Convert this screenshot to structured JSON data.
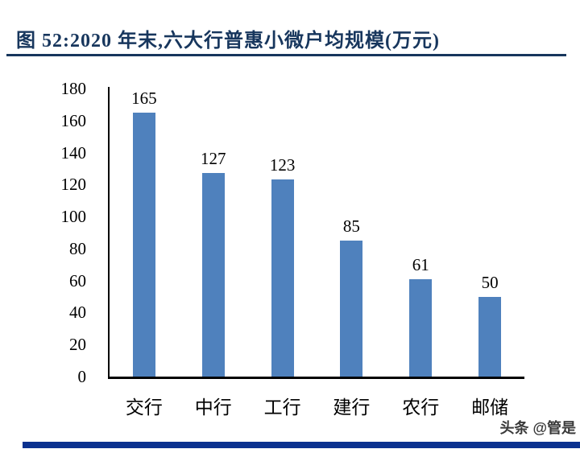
{
  "header": {
    "title": "图 52:2020 年末,六大行普惠小微户均规模(万元)"
  },
  "chart_data": {
    "type": "bar",
    "title": "图 52:2020 年末,六大行普惠小微户均规模(万元)",
    "categories": [
      "交行",
      "中行",
      "工行",
      "建行",
      "农行",
      "邮储"
    ],
    "values": [
      165,
      127,
      123,
      85,
      61,
      50
    ],
    "xlabel": "",
    "ylabel": "",
    "ylim": [
      0,
      180
    ],
    "yticks": [
      0,
      20,
      40,
      60,
      80,
      100,
      120,
      140,
      160,
      180
    ],
    "value_labels_shown": true,
    "grid": false,
    "legend_position": "none",
    "bar_color": "#4F81BD",
    "axis_color": "#000000"
  },
  "watermark": {
    "text": "头条 @管是"
  },
  "colors": {
    "title_navy": "#17365D",
    "bottom_bar_navy": "#0B318F",
    "bar_blue": "#4F81BD"
  }
}
